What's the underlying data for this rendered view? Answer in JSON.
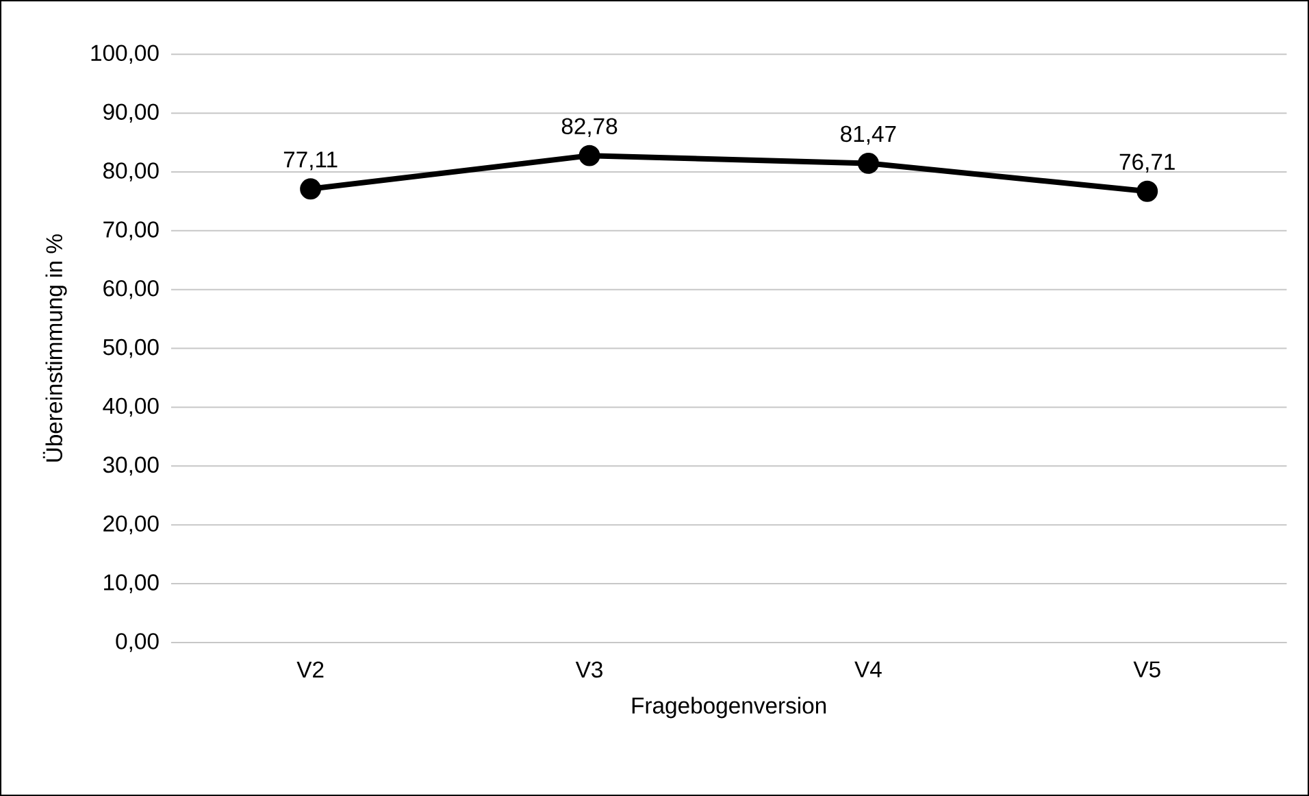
{
  "chart_data": {
    "type": "line",
    "xlabel": "Fragebogenversion",
    "ylabel": "Übereinstimmung in %",
    "categories": [
      "V2",
      "V3",
      "V4",
      "V5"
    ],
    "series": [
      {
        "color": "#000000",
        "values": [
          77.11,
          82.78,
          81.47,
          76.71
        ],
        "value_labels": [
          "77,11",
          "82,78",
          "81,47",
          "76,71"
        ]
      }
    ],
    "ylim": [
      0,
      100
    ],
    "yticks": [
      {
        "value": 0,
        "label": "0,00"
      },
      {
        "value": 10,
        "label": "10,00"
      },
      {
        "value": 20,
        "label": "20,00"
      },
      {
        "value": 30,
        "label": "30,00"
      },
      {
        "value": 40,
        "label": "40,00"
      },
      {
        "value": 50,
        "label": "50,00"
      },
      {
        "value": 60,
        "label": "60,00"
      },
      {
        "value": 70,
        "label": "70,00"
      },
      {
        "value": 80,
        "label": "80,00"
      },
      {
        "value": 90,
        "label": "90,00"
      },
      {
        "value": 100,
        "label": "100,00"
      }
    ],
    "grid": "y",
    "marker": "circle",
    "line_style": "solid",
    "legend": false
  }
}
